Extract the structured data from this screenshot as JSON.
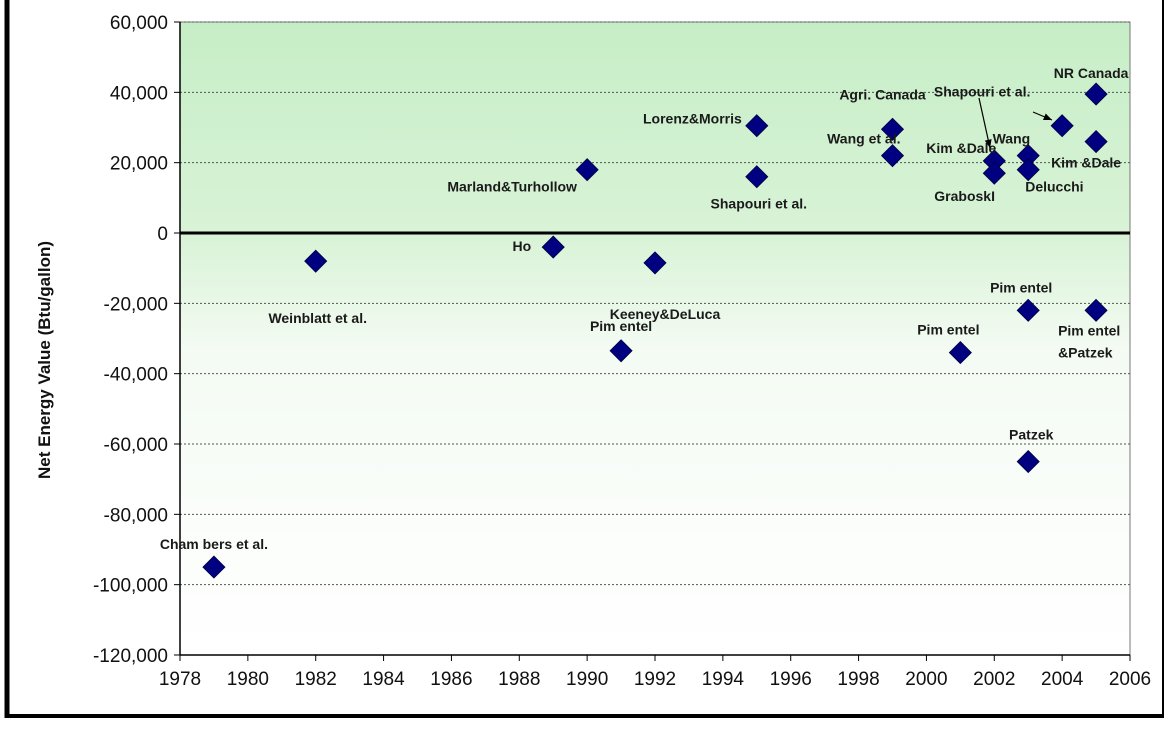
{
  "chart_data": {
    "type": "scatter",
    "title": "",
    "xlabel": "",
    "ylabel": "Net Energy Value (Btu/gallon)",
    "xlim": [
      1978,
      2006
    ],
    "ylim": [
      -120000,
      60000
    ],
    "x_ticks": [
      1978,
      1980,
      1982,
      1984,
      1986,
      1988,
      1990,
      1992,
      1994,
      1996,
      1998,
      2000,
      2002,
      2004,
      2006
    ],
    "y_ticks": [
      60000,
      40000,
      20000,
      0,
      -20000,
      -40000,
      -60000,
      -80000,
      -100000,
      -120000
    ],
    "x_tick_labels": [
      "1978",
      "1980",
      "1982",
      "1984",
      "1986",
      "1988",
      "1990",
      "1992",
      "1994",
      "1996",
      "1998",
      "2000",
      "2002",
      "2004",
      "2006"
    ],
    "y_tick_labels": [
      "60,000",
      "40,000",
      "20,000",
      "0",
      "-20,000",
      "-40,000",
      "-60,000",
      "-80,000",
      "-100,000",
      "-120,000"
    ],
    "grid": "horizontal dotted",
    "background": "green gradient above zero line, white below",
    "marker_color": "#000080",
    "points": [
      {
        "x": 1979,
        "y": -95000,
        "label": "Cham bers et al."
      },
      {
        "x": 1982,
        "y": -8000,
        "label": "Weinblatt et al."
      },
      {
        "x": 1989,
        "y": -4000,
        "label": "Ho"
      },
      {
        "x": 1990,
        "y": 18000,
        "label": "Marland&Turhollow"
      },
      {
        "x": 1991,
        "y": -33500,
        "label": "Pim entel"
      },
      {
        "x": 1992,
        "y": -8500,
        "label": "Keeney&DeLuca"
      },
      {
        "x": 1995,
        "y": 30500,
        "label": "Lorenz&Morris"
      },
      {
        "x": 1995,
        "y": 16000,
        "label": "Shapouri et al."
      },
      {
        "x": 1999,
        "y": 29500,
        "label": "Agri. Canada"
      },
      {
        "x": 1999,
        "y": 22000,
        "label": "Wang et al."
      },
      {
        "x": 2001,
        "y": -34000,
        "label": "Pim entel"
      },
      {
        "x": 2002,
        "y": 20500,
        "label": "Kim &Dale"
      },
      {
        "x": 2002,
        "y": 17000,
        "label": "GraboskI"
      },
      {
        "x": 2003,
        "y": 22000,
        "label": "Wang"
      },
      {
        "x": 2003,
        "y": 18000,
        "label": "Delucchi"
      },
      {
        "x": 2003,
        "y": -22000,
        "label": "Pim entel"
      },
      {
        "x": 2003,
        "y": -65000,
        "label": "Patzek"
      },
      {
        "x": 2004,
        "y": 30500,
        "label": "Shapouri et al."
      },
      {
        "x": 2005,
        "y": 39500,
        "label": "NR Canada"
      },
      {
        "x": 2005,
        "y": 26000,
        "label": "Kim &Dale"
      },
      {
        "x": 2005,
        "y": -22000,
        "label": "Pim entel &Patzek"
      }
    ]
  }
}
